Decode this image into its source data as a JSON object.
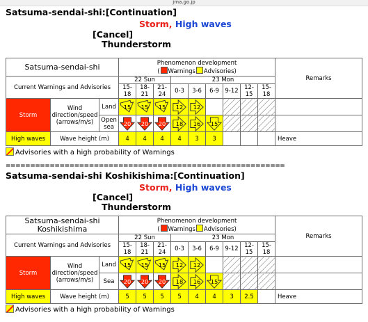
{
  "site": "jma.go.jp",
  "note_text": "Advisories with a high probability of Warnings",
  "separator": "=========================================================",
  "colors": {
    "warning": "#ff2800",
    "advisory": "#ffff00",
    "storm_text": "#e8211a",
    "waves_text": "#1a46d4"
  },
  "common": {
    "phen_title": "Phenomenon development",
    "warnings_label": "Warnings",
    "advisories_label": "Advisories",
    "current_label": "Current Warnings and Advisories",
    "remarks_label": "Remarks",
    "day1": "22 Sun",
    "day2": "23 Mon",
    "times": [
      "15-18",
      "18-21",
      "21-24",
      "0-3",
      "3-6",
      "6-9",
      "9-12",
      "12-15",
      "15-18"
    ],
    "storm_label": "Storm",
    "wind_label": "Wind direction/speed (arrows/m/s)",
    "land_label": "Land",
    "high_waves_label": "High waves",
    "wave_height_label": "Wave height (m)",
    "status_storm": "Storm,",
    "status_waves": "High waves",
    "cancel": "[Cancel]",
    "thunder": "Thunderstorm"
  },
  "sections": [
    {
      "title": "Satsuma-sendai-shi:[Continuation]",
      "area": "Satsuma-sendai-shi",
      "sea_label": "Open sea",
      "land": [
        {
          "v": "15",
          "lvl": "adv",
          "dir": "NE"
        },
        {
          "v": "15",
          "lvl": "adv",
          "dir": "NE"
        },
        {
          "v": "15",
          "lvl": "adv",
          "dir": "NE"
        },
        {
          "v": "12",
          "lvl": "adv",
          "dir": "E"
        },
        {
          "v": "12",
          "lvl": "adv",
          "dir": "E"
        },
        {
          "v": "",
          "lvl": "none",
          "dir": ""
        },
        {
          "v": "",
          "lvl": "hatch",
          "dir": ""
        },
        {
          "v": "",
          "lvl": "hatch",
          "dir": ""
        },
        {
          "v": "",
          "lvl": "hatch",
          "dir": ""
        }
      ],
      "sea": [
        {
          "v": "20",
          "lvl": "warn",
          "dir": "S"
        },
        {
          "v": "20",
          "lvl": "warn",
          "dir": "S"
        },
        {
          "v": "20",
          "lvl": "warn",
          "dir": "S"
        },
        {
          "v": "18",
          "lvl": "adv",
          "dir": "E"
        },
        {
          "v": "16",
          "lvl": "adv",
          "dir": "E"
        },
        {
          "v": "15",
          "lvl": "adv",
          "dir": "S"
        },
        {
          "v": "",
          "lvl": "hatch",
          "dir": ""
        },
        {
          "v": "",
          "lvl": "hatch",
          "dir": ""
        },
        {
          "v": "",
          "lvl": "hatch",
          "dir": ""
        }
      ],
      "waves": [
        {
          "v": "4",
          "lvl": "adv"
        },
        {
          "v": "4",
          "lvl": "adv"
        },
        {
          "v": "4",
          "lvl": "adv"
        },
        {
          "v": "4",
          "lvl": "adv"
        },
        {
          "v": "3",
          "lvl": "adv"
        },
        {
          "v": "3",
          "lvl": "adv"
        },
        {
          "v": "",
          "lvl": "none"
        },
        {
          "v": "",
          "lvl": "none"
        },
        {
          "v": "",
          "lvl": "none"
        }
      ],
      "remarks_waves": "Heave"
    },
    {
      "title": "Satsuma-sendai-shi Koshikishima:[Continuation]",
      "area": "Satsuma-sendai-shi Koshikishima",
      "sea_label": "Sea",
      "land": [
        {
          "v": "15",
          "lvl": "adv",
          "dir": "NE"
        },
        {
          "v": "15",
          "lvl": "adv",
          "dir": "NE"
        },
        {
          "v": "15",
          "lvl": "adv",
          "dir": "NE"
        },
        {
          "v": "12",
          "lvl": "adv",
          "dir": "E"
        },
        {
          "v": "12",
          "lvl": "adv",
          "dir": "E"
        },
        {
          "v": "",
          "lvl": "none",
          "dir": ""
        },
        {
          "v": "",
          "lvl": "hatch",
          "dir": ""
        },
        {
          "v": "",
          "lvl": "hatch",
          "dir": ""
        },
        {
          "v": "",
          "lvl": "hatch",
          "dir": ""
        }
      ],
      "sea": [
        {
          "v": "20",
          "lvl": "warn",
          "dir": "S"
        },
        {
          "v": "20",
          "lvl": "warn",
          "dir": "S"
        },
        {
          "v": "20",
          "lvl": "warn",
          "dir": "S"
        },
        {
          "v": "18",
          "lvl": "adv",
          "dir": "E"
        },
        {
          "v": "16",
          "lvl": "adv",
          "dir": "E"
        },
        {
          "v": "15",
          "lvl": "adv",
          "dir": "S"
        },
        {
          "v": "",
          "lvl": "hatch",
          "dir": ""
        },
        {
          "v": "",
          "lvl": "hatch",
          "dir": ""
        },
        {
          "v": "",
          "lvl": "hatch",
          "dir": ""
        }
      ],
      "waves": [
        {
          "v": "5",
          "lvl": "adv"
        },
        {
          "v": "5",
          "lvl": "adv"
        },
        {
          "v": "5",
          "lvl": "adv"
        },
        {
          "v": "5",
          "lvl": "adv"
        },
        {
          "v": "4",
          "lvl": "adv"
        },
        {
          "v": "4",
          "lvl": "adv"
        },
        {
          "v": "3",
          "lvl": "adv"
        },
        {
          "v": "2.5",
          "lvl": "adv"
        },
        {
          "v": "",
          "lvl": "none"
        }
      ],
      "remarks_waves": "Heave"
    }
  ]
}
